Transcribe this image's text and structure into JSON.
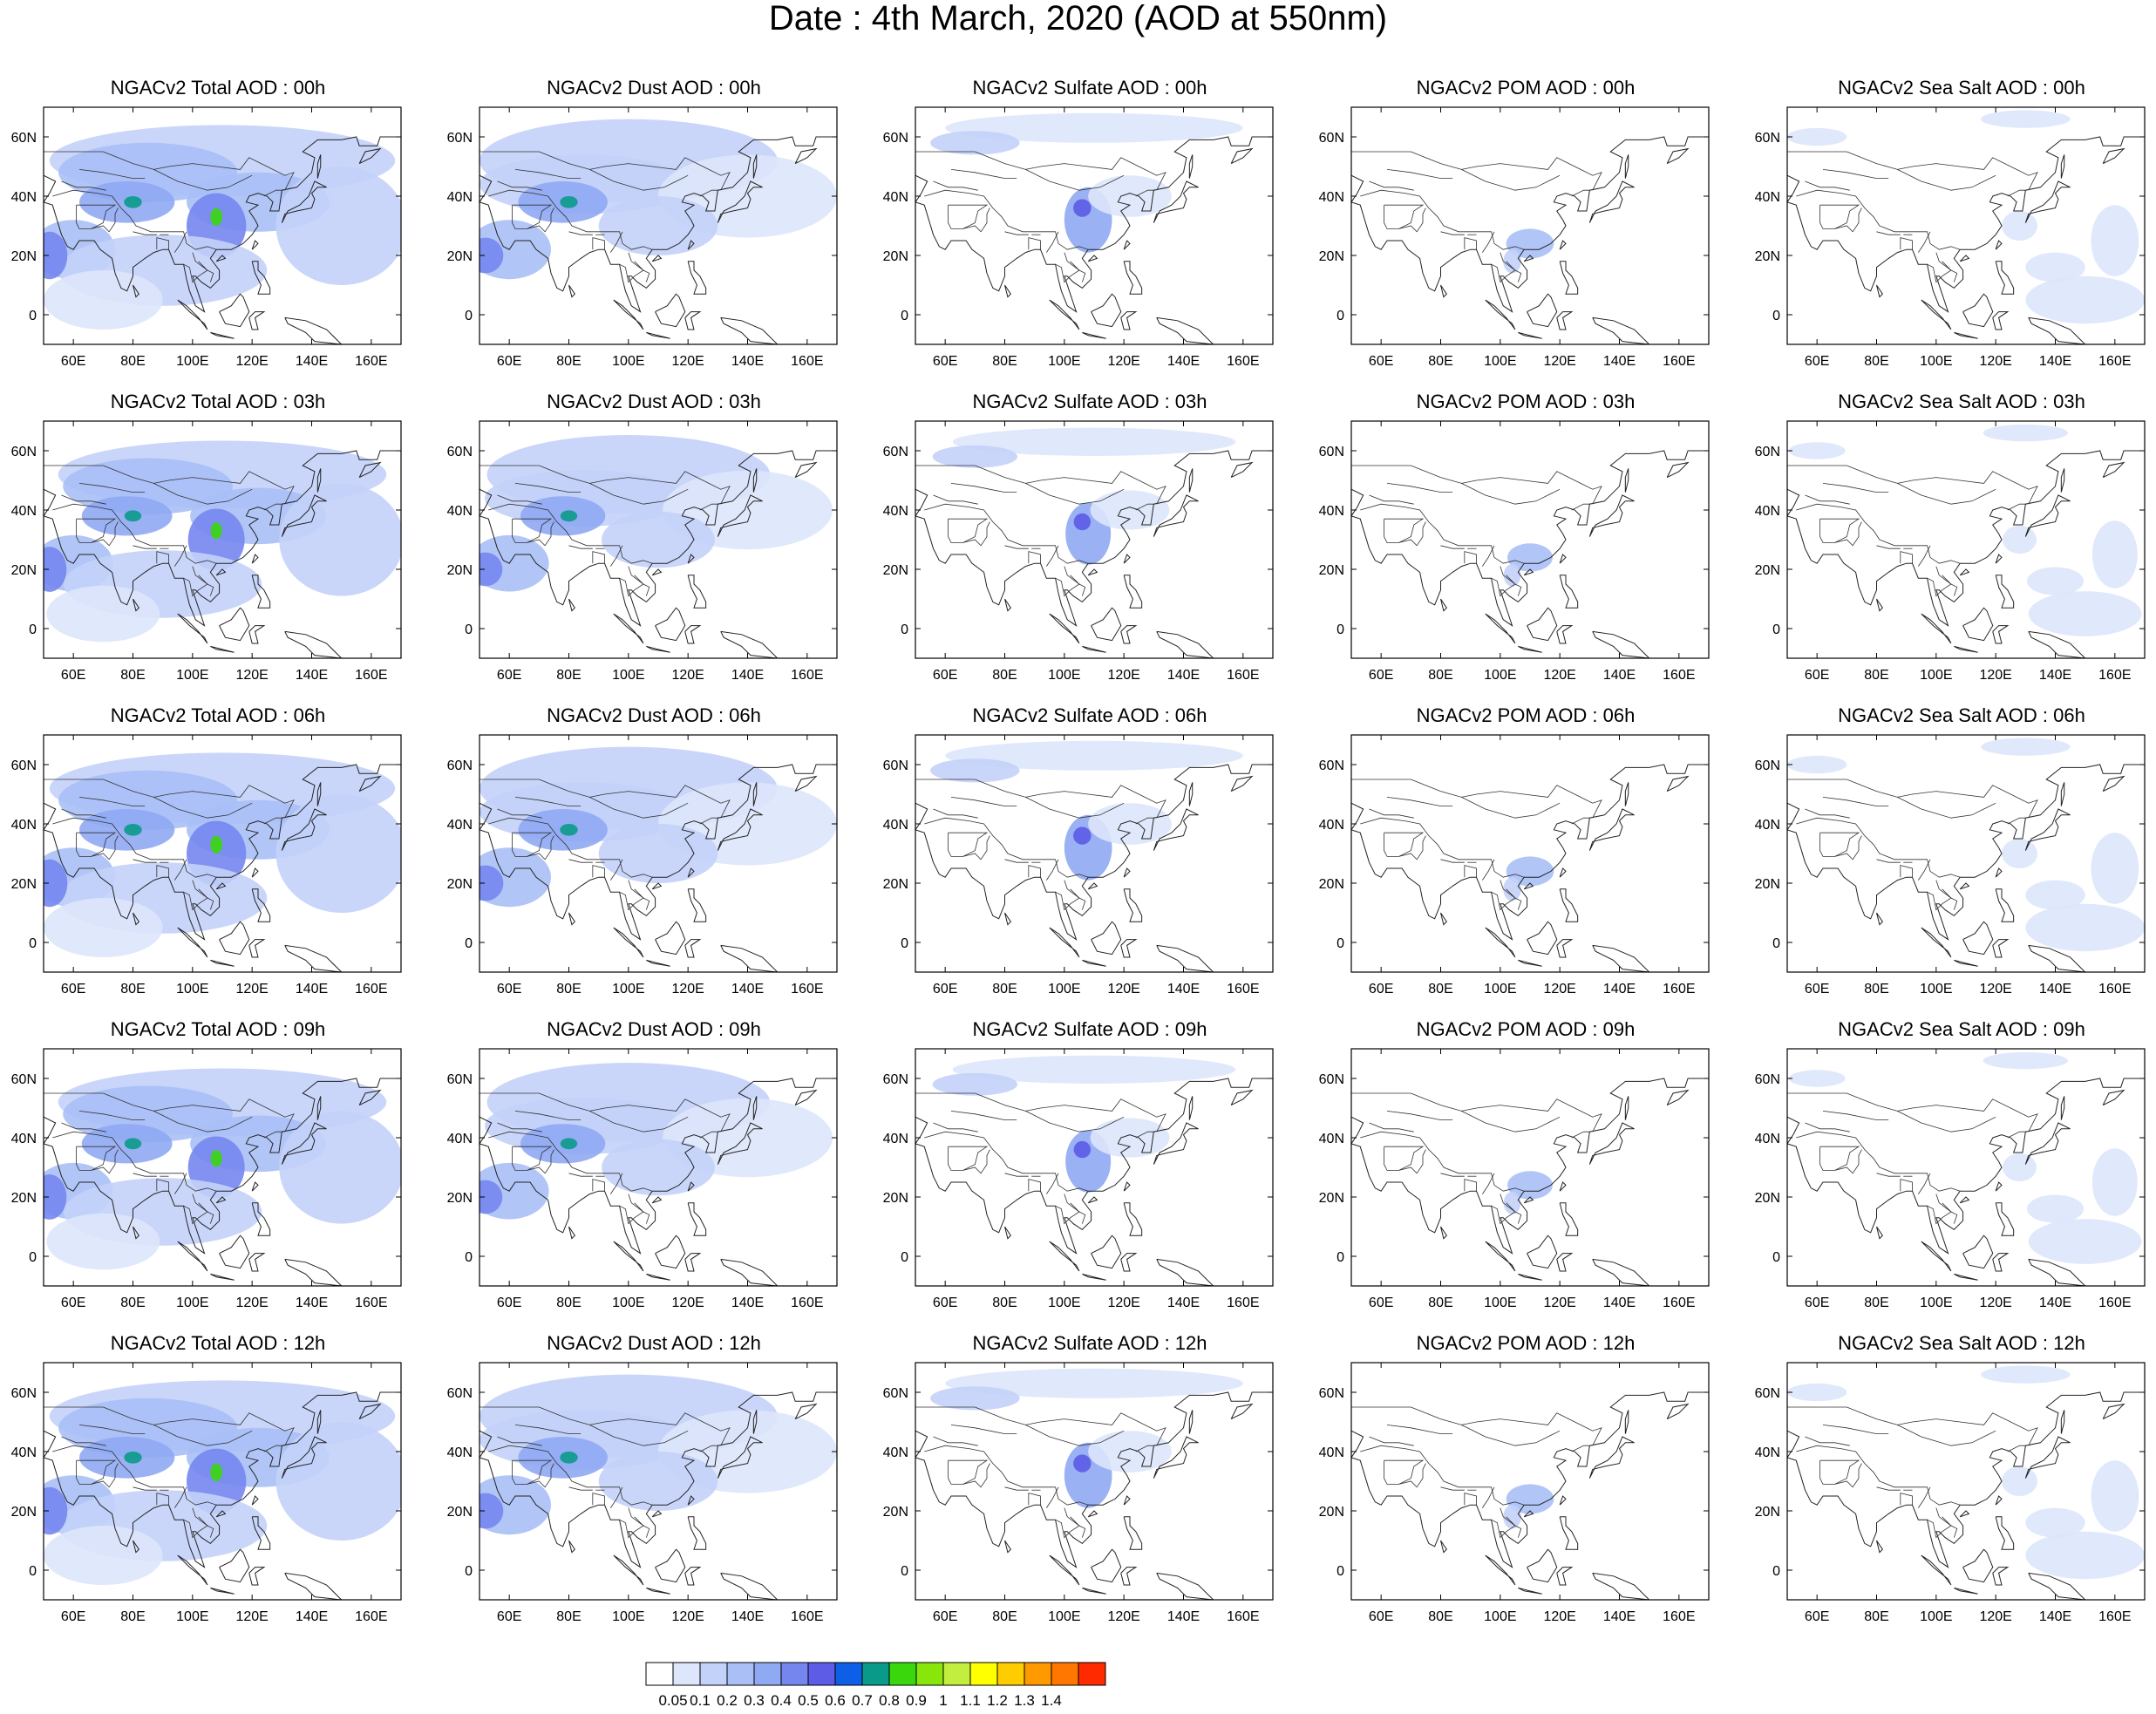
{
  "figure": {
    "title": "Date : 4th March, 2020 (AOD at 550nm)"
  },
  "chart_data": {
    "type": "heatmap",
    "description_level": "spatial AOD maps (Asia), 5 rows (forecast hour) x 5 columns (species)",
    "map_extent": {
      "lon": [
        50,
        170
      ],
      "lat": [
        -10,
        70
      ]
    },
    "x_ticks": [
      "60E",
      "80E",
      "100E",
      "120E",
      "140E",
      "160E"
    ],
    "y_ticks": [
      "60N",
      "40N",
      "20N",
      "0"
    ],
    "columns": [
      "Total",
      "Dust",
      "Sulfate",
      "POM",
      "Sea Salt"
    ],
    "rows": [
      "00h",
      "03h",
      "06h",
      "09h",
      "12h"
    ],
    "panel_titles": [
      [
        "NGACv2 Total AOD : 00h",
        "NGACv2 Dust AOD : 00h",
        "NGACv2 Sulfate AOD : 00h",
        "NGACv2 POM AOD : 00h",
        "NGACv2 Sea Salt AOD : 00h"
      ],
      [
        "NGACv2 Total AOD : 03h",
        "NGACv2 Dust AOD : 03h",
        "NGACv2 Sulfate AOD : 03h",
        "NGACv2 POM AOD : 03h",
        "NGACv2 Sea Salt AOD : 03h"
      ],
      [
        "NGACv2 Total AOD : 06h",
        "NGACv2 Dust AOD : 06h",
        "NGACv2 Sulfate AOD : 06h",
        "NGACv2 POM AOD : 06h",
        "NGACv2 Sea Salt AOD : 06h"
      ],
      [
        "NGACv2 Total AOD : 09h",
        "NGACv2 Dust AOD : 09h",
        "NGACv2 Sulfate AOD : 09h",
        "NGACv2 POM AOD : 09h",
        "NGACv2 Sea Salt  AOD : 09h"
      ],
      [
        "NGACv2 Total AOD  : 12h",
        "NGACv2 Dust AOD : 12h",
        "NGACv2 Sulfate AOD : 12h",
        "NGACv2 POM  AOD : 12h",
        "NGACv2 Sea Salt  AOD : 12h"
      ]
    ],
    "colorbar": {
      "labels": [
        "0.05",
        "0.1",
        "0.2",
        "0.3",
        "0.4",
        "0.5",
        "0.6",
        "0.7",
        "0.8",
        "0.9",
        "1",
        "1.1",
        "1.2",
        "1.3",
        "1.4"
      ],
      "colors": [
        "#ffffff",
        "#dde6fb",
        "#c3d2f9",
        "#a9bff6",
        "#8fa9f3",
        "#7586ef",
        "#5c5ce6",
        "#0c5fe6",
        "#0a9a8a",
        "#3ad70d",
        "#88e60b",
        "#c2ee3f",
        "#ffff00",
        "#ffcc00",
        "#ff9900",
        "#ff7700",
        "#ff2a00"
      ]
    },
    "land_color": "#ffffff",
    "coast_color": "#222222"
  }
}
